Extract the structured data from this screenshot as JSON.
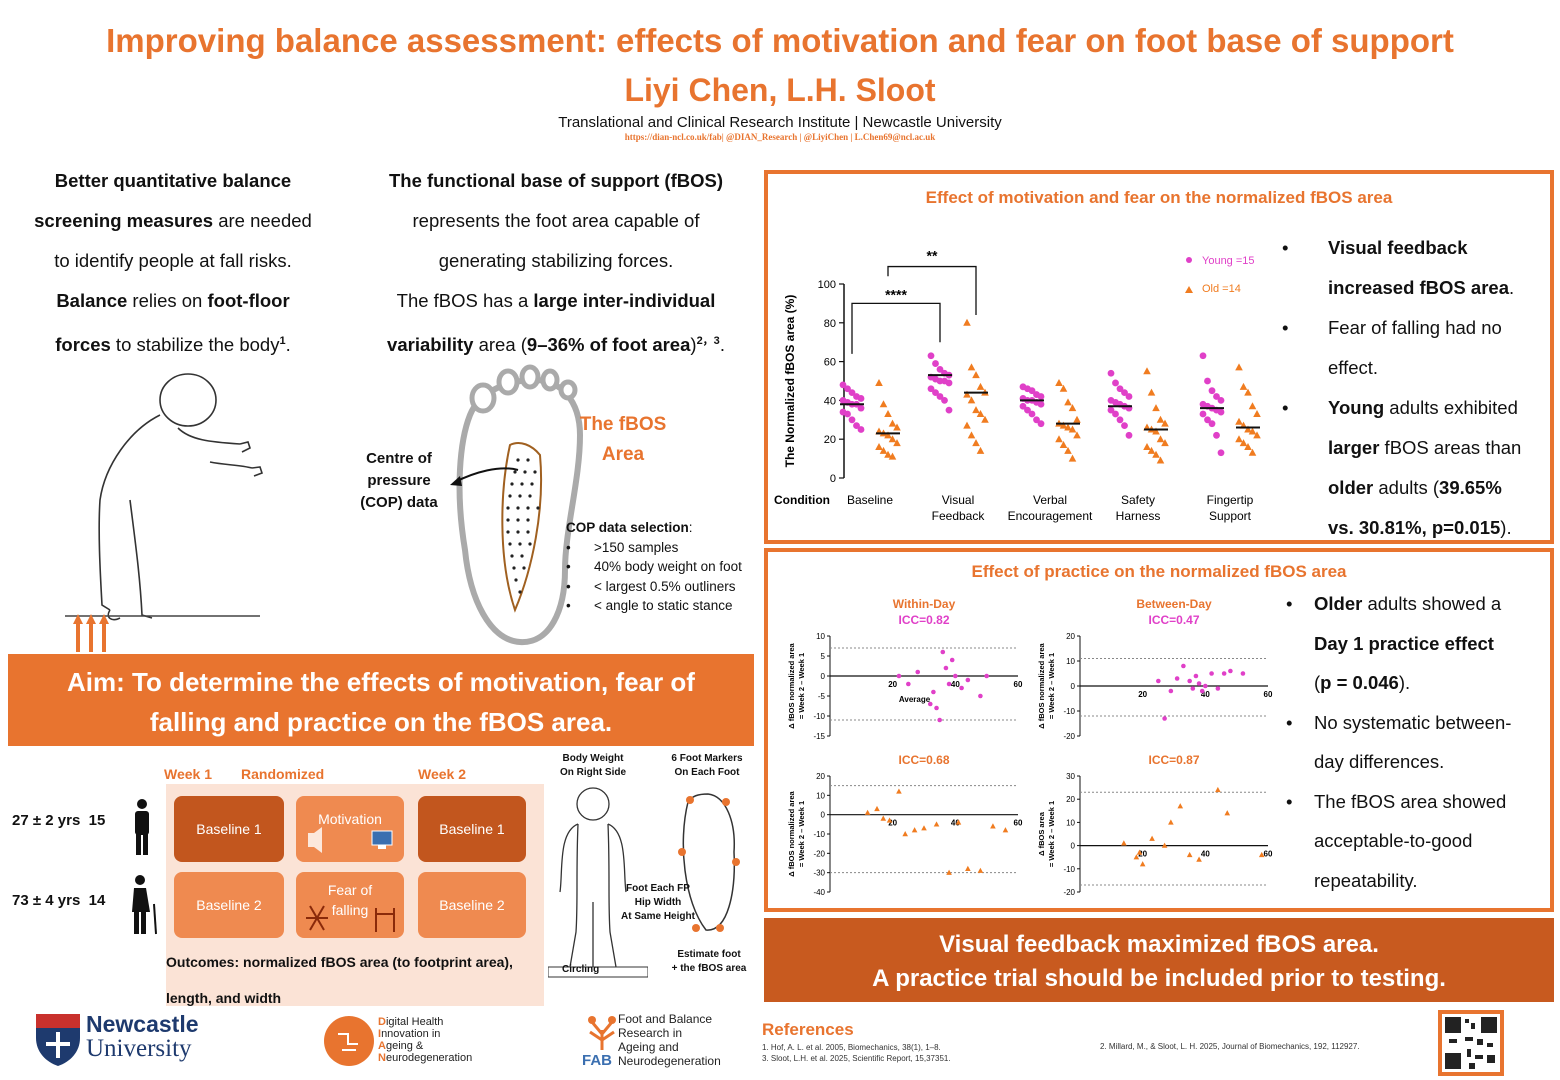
{
  "header": {
    "title": "Improving balance assessment: effects of motivation and fear on foot base of support",
    "authors": "Liyi Chen, L.H. Sloot",
    "affiliation": "Translational and Clinical Research Institute |  Newcastle University",
    "links": "https://dian-ncl.co.uk/fab|     @DIAN_Research |     @LiyiChen |  L.Chen69@ncl.ac.uk"
  },
  "intro_left": {
    "l1": "Better quantitative balance",
    "l2": "screening measures",
    "l2b": " are needed",
    "l3": "to identify people at fall risks.",
    "l4a": "Balance",
    "l4b": " relies on ",
    "l4c": "foot-floor",
    "l5a": "forces",
    "l5b": " to stabilize the body",
    "l5sup": "1",
    "l5c": "."
  },
  "intro_right": {
    "l1": "The functional base of support (fBOS)",
    "l2": "represents the foot area capable of",
    "l3": "generating stabilizing forces.",
    "l4a": "The fBOS has a ",
    "l4b": "large inter-individual",
    "l5a": "variability",
    "l5b": " area (",
    "l5c": "9–36% of foot area",
    "l5d": ")",
    "l5sup": "2，3",
    "l5e": "."
  },
  "foot_figure": {
    "fbos_label_1": "The fBOS",
    "fbos_label_2": "Area",
    "cop_1": "Centre of",
    "cop_2": "pressure",
    "cop_3": "(COP) data",
    "selection_title": "COP data selection",
    "selection_colon": ":",
    "selection": [
      ">150 samples",
      "40% body weight on foot",
      "< largest 0.5% outliners",
      "< angle to static stance"
    ]
  },
  "aim": {
    "line1": "Aim: To determine the effects of motivation, fear of",
    "line2": "falling and practice on the fBOS area."
  },
  "design": {
    "week1": "Week 1",
    "randomized": "Randomized",
    "week2": "Week 2",
    "young": "27 ± 2 yrs",
    "young_n": "15",
    "old": "73 ± 4 yrs",
    "old_n": "14",
    "baseline1": "Baseline 1",
    "motivation": "Motivation",
    "baseline1b": "Baseline 1",
    "baseline2": "Baseline 2",
    "fear1": "Fear of",
    "fear2": "falling",
    "baseline2b": "Baseline 2",
    "outcomes1": "Outcomes: normalized fBOS area (to footprint area),",
    "outcomes2": "length, and width",
    "bw1": "Body Weight",
    "bw2": "On Right Side",
    "markers1": "6 Foot Markers",
    "markers2": "On Each Foot",
    "fp1": "Foot Each FP",
    "fp2": "Hip Width",
    "fp3": "At Same Height",
    "circling": "Circling",
    "est1": "Estimate foot",
    "est2": "+ the fBOS area"
  },
  "panel1": {
    "title": "Effect of motivation and fear on the normalized fBOS area",
    "ylabel": "The Normalized fBOS area (%)",
    "condition_label": "Condition",
    "sig1": "**",
    "sig2": "****",
    "legend_young": "Young =15",
    "legend_old": "Old =14",
    "bullets": {
      "b1a": "Visual feedback",
      "b1b": "increased fBOS area",
      ".": ".",
      "b2a": "Fear of falling had no",
      "b2b": "effect.",
      "b3a": "Young",
      "b3b": " adults exhibited",
      "b3c": "larger",
      "b3d": " fBOS areas than",
      "b3e": "older",
      "b3f": " adults (",
      "b3g": "39.65%",
      "b3h": "vs. 30.81%, p=0.015",
      "b3i": ")."
    }
  },
  "chart_data": [
    {
      "type": "scatter",
      "title": "Effect of motivation and fear on the normalized fBOS area",
      "xlabel": "Condition",
      "ylabel": "The Normalized fBOS area (%)",
      "ylim": [
        0,
        100
      ],
      "yticks": [
        "0",
        "20",
        "40",
        "60",
        "80",
        "100"
      ],
      "categories": [
        "Baseline",
        "Visual\nFeedback",
        "Verbal\nEncouragement",
        "Safety\nHarness",
        "Fingertip\nSupport"
      ],
      "category_lines": [
        [
          "Baseline"
        ],
        [
          "Visual",
          "Feedback"
        ],
        [
          "Verbal",
          "Encouragement"
        ],
        [
          "Safety",
          "Harness"
        ],
        [
          "Fingertip",
          "Support"
        ]
      ],
      "legend": "top-right",
      "colors": {
        "young": "#e040c8",
        "old": "#f07c20"
      },
      "series": [
        {
          "name": "Young =15",
          "marker": "circle",
          "means": [
            38,
            53,
            40,
            37,
            36
          ],
          "points": [
            [
              48,
              46,
              44,
              42,
              41,
              40,
              39,
              38,
              38,
              36,
              34,
              33,
              30,
              27,
              25
            ],
            [
              63,
              59,
              56,
              54,
              53,
              52,
              51,
              50,
              50,
              49,
              46,
              44,
              42,
              40,
              35
            ],
            [
              47,
              46,
              45,
              43,
              42,
              41,
              40,
              40,
              39,
              38,
              37,
              35,
              33,
              30,
              28
            ],
            [
              54,
              49,
              46,
              44,
              42,
              40,
              39,
              38,
              37,
              36,
              35,
              33,
              30,
              27,
              22
            ],
            [
              63,
              50,
              45,
              42,
              40,
              38,
              37,
              36,
              35,
              34,
              33,
              30,
              28,
              22,
              13
            ]
          ]
        },
        {
          "name": "Old =14",
          "marker": "triangle",
          "means": [
            23,
            44,
            28,
            25,
            26
          ],
          "points": [
            [
              49,
              38,
              33,
              28,
              26,
              24,
              23,
              22,
              20,
              18,
              16,
              14,
              12,
              11
            ],
            [
              80,
              57,
              53,
              47,
              44,
              43,
              40,
              35,
              33,
              30,
              27,
              22,
              18,
              14
            ],
            [
              49,
              46,
              39,
              36,
              30,
              28,
              27,
              26,
              25,
              22,
              20,
              17,
              14,
              10
            ],
            [
              55,
              44,
              36,
              30,
              28,
              26,
              25,
              24,
              20,
              18,
              16,
              14,
              12,
              9
            ],
            [
              57,
              47,
              44,
              37,
              33,
              29,
              27,
              25,
              24,
              22,
              20,
              18,
              16,
              13
            ]
          ]
        }
      ],
      "significance": [
        {
          "between": [
            "Baseline",
            "Visual\nFeedback"
          ],
          "label": "****",
          "group": "Young"
        },
        {
          "between": [
            "Baseline",
            "Visual\nFeedback"
          ],
          "label": "**",
          "group": "Old"
        }
      ]
    },
    {
      "type": "scatter",
      "title": "Within-Day",
      "subtitle": "ICC=0.82",
      "ylabel": "Δ fBOS normalized area\n= Week 2 – Week 1",
      "ylim": [
        -15,
        10
      ],
      "xlim": [
        0,
        60
      ],
      "yticks": [
        10,
        5,
        0,
        -5,
        -10,
        -15
      ],
      "xticks": [
        20,
        40,
        60
      ],
      "mean_line": 0,
      "limits": [
        7,
        -11
      ],
      "annotation": "Average",
      "color": "#e040c8",
      "points": [
        [
          22,
          0
        ],
        [
          25,
          -2
        ],
        [
          28,
          1
        ],
        [
          32,
          -7
        ],
        [
          33,
          -4
        ],
        [
          34,
          -8
        ],
        [
          35,
          -11
        ],
        [
          36,
          6
        ],
        [
          37,
          2
        ],
        [
          38,
          -2
        ],
        [
          39,
          4
        ],
        [
          40,
          0
        ],
        [
          42,
          -3
        ],
        [
          44,
          -1
        ],
        [
          48,
          -5
        ],
        [
          50,
          0
        ]
      ]
    },
    {
      "type": "scatter",
      "title": "Between-Day",
      "subtitle": "ICC=0.47",
      "ylabel": "Δ fBOS normalized area\n= Week 2 – Week 1",
      "ylim": [
        -20,
        20
      ],
      "xlim": [
        0,
        60
      ],
      "yticks": [
        20,
        10,
        0,
        -10,
        -20
      ],
      "xticks": [
        20,
        40,
        60
      ],
      "mean_line": 0,
      "limits": [
        11,
        -12
      ],
      "color": "#e040c8",
      "points": [
        [
          25,
          2
        ],
        [
          27,
          -13
        ],
        [
          29,
          -2
        ],
        [
          31,
          3
        ],
        [
          33,
          8
        ],
        [
          35,
          2
        ],
        [
          36,
          -1
        ],
        [
          37,
          4
        ],
        [
          38,
          1
        ],
        [
          39,
          -2
        ],
        [
          40,
          0
        ],
        [
          42,
          5
        ],
        [
          44,
          -1
        ],
        [
          46,
          5
        ],
        [
          48,
          6
        ],
        [
          52,
          5
        ]
      ]
    },
    {
      "type": "scatter",
      "subtitle": "ICC=0.68",
      "ylabel": "Δ fBOS normalized area\n= Week 2 – Week 1",
      "ylim": [
        -40,
        20
      ],
      "xlim": [
        0,
        60
      ],
      "yticks": [
        20,
        10,
        0,
        -10,
        -20,
        -30,
        -40
      ],
      "xticks": [
        20,
        40,
        60
      ],
      "mean_line": 0,
      "limits": [
        15,
        -30
      ],
      "color": "#f07c20",
      "points": [
        [
          12,
          1
        ],
        [
          15,
          3
        ],
        [
          17,
          -2
        ],
        [
          19,
          -3
        ],
        [
          22,
          12
        ],
        [
          24,
          -10
        ],
        [
          27,
          -8
        ],
        [
          30,
          -7
        ],
        [
          34,
          -5
        ],
        [
          38,
          -30
        ],
        [
          41,
          -4
        ],
        [
          44,
          -28
        ],
        [
          48,
          -29
        ],
        [
          52,
          -6
        ],
        [
          56,
          -8
        ]
      ]
    },
    {
      "type": "scatter",
      "subtitle": "ICC=0.87",
      "ylabel": "Δ fBOS area\n= Week 2 – Week 1",
      "ylim": [
        -20,
        30
      ],
      "xlim": [
        0,
        60
      ],
      "yticks": [
        30,
        20,
        10,
        0,
        -10,
        -20
      ],
      "xticks": [
        20,
        40,
        60
      ],
      "mean_line": 0,
      "limits": [
        23,
        -17
      ],
      "color": "#f07c20",
      "points": [
        [
          14,
          1
        ],
        [
          18,
          -5
        ],
        [
          19,
          -3
        ],
        [
          20,
          -8
        ],
        [
          23,
          3
        ],
        [
          27,
          0
        ],
        [
          29,
          10
        ],
        [
          32,
          17
        ],
        [
          35,
          -4
        ],
        [
          38,
          -6
        ],
        [
          44,
          24
        ],
        [
          47,
          14
        ],
        [
          58,
          -4
        ]
      ]
    }
  ],
  "panel2": {
    "title": "Effect of practice on the normalized fBOS area",
    "bullets": {
      "b1a": "Older",
      "b1b": " adults showed a",
      "b1c": "Day 1 practice effect",
      "b1d": "(",
      "b1e": "p = 0.046",
      "b1f": ").",
      "b2a": "No systematic between-",
      "b2b": "day differences.",
      "b3a": "The fBOS area showed",
      "b3b": "acceptable-to-good",
      "b3c": "repeatability."
    }
  },
  "conclusion": {
    "line1": "Visual feedback maximized fBOS area.",
    "line2": "A practice trial should be included prior to testing."
  },
  "references": {
    "title": "References",
    "r1": "1. Hof, A. L. et al. 2005, Biomechanics, 38(1), 1–8.",
    "r3": "3. Sloot, L.H. et al. 2025, Scientific Report, 15,37351.",
    "r2": "2. Millard, M., & Sloot, L. H. 2025, Journal of Biomechanics, 192, 112927."
  },
  "logos": {
    "ncl1": "Newcastle",
    "ncl2": "University",
    "dian": [
      "D",
      "igital Health",
      "I",
      "nnovation in",
      "A",
      "geing &",
      "N",
      "eurodegeneration"
    ],
    "fab": [
      "Foot and Balance",
      "Research in",
      "Ageing and",
      "Neurodegeneration"
    ],
    "fab_mark": "FAB"
  },
  "bullet_char": "•"
}
